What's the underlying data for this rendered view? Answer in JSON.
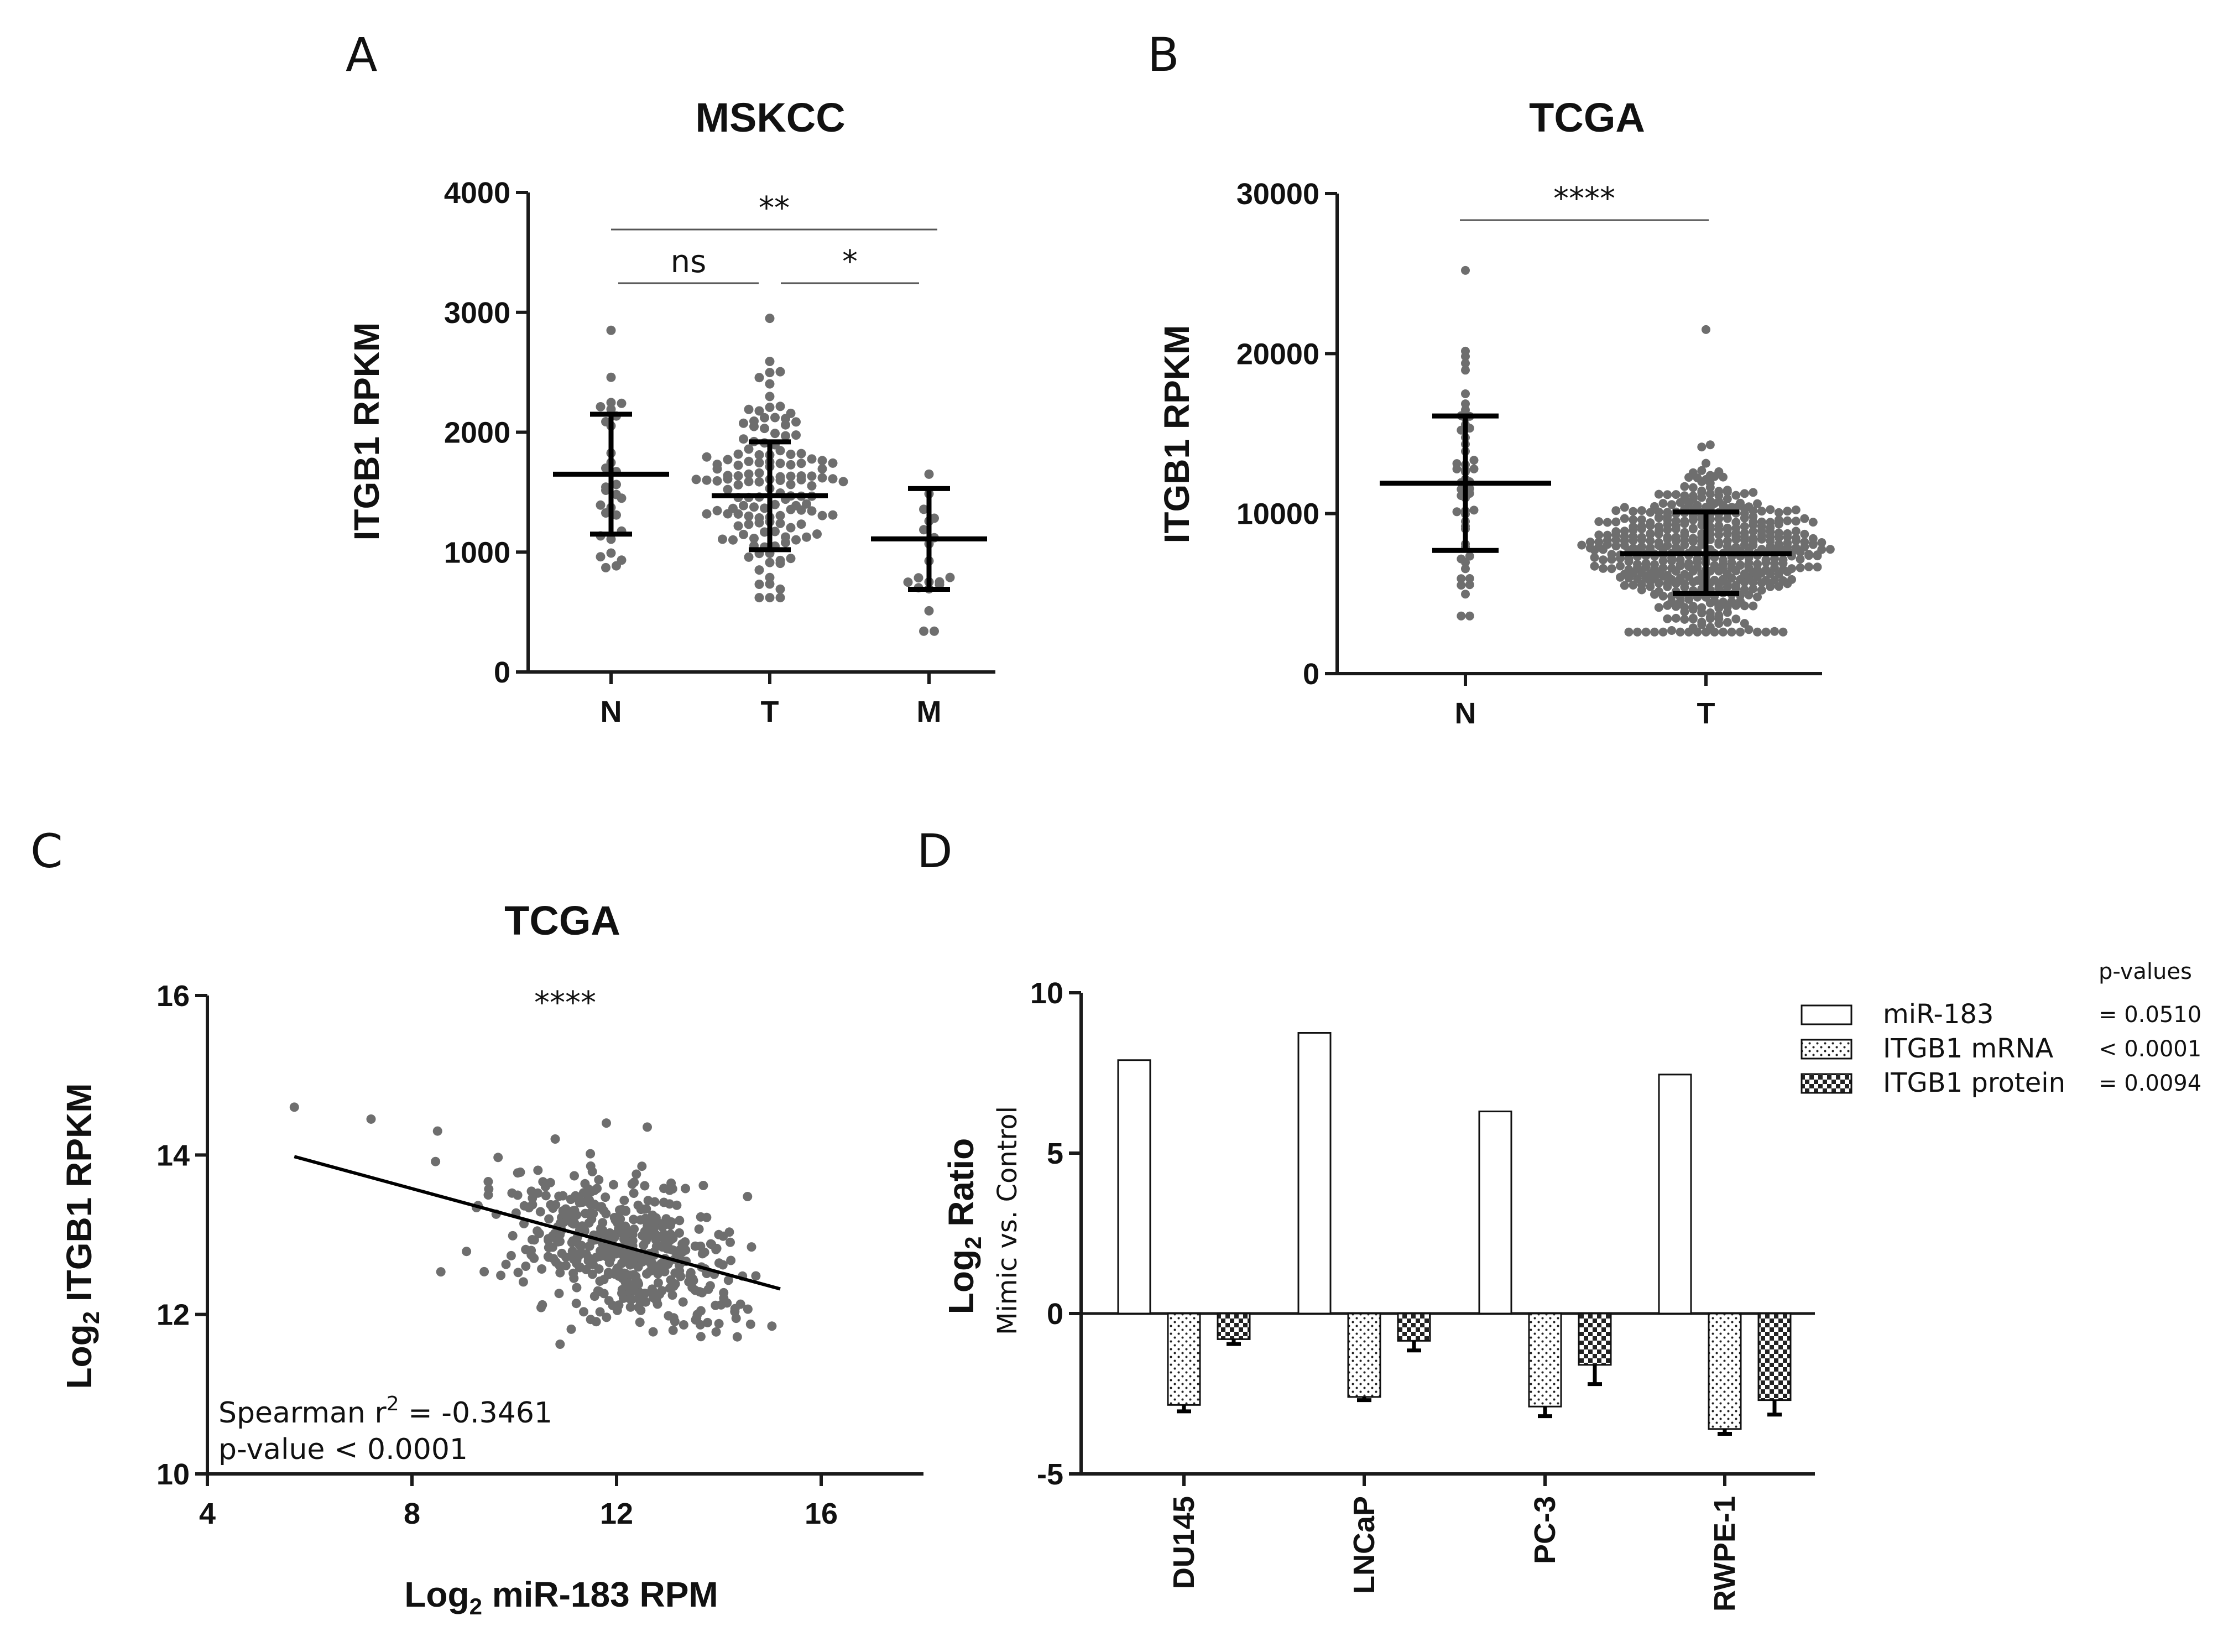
{
  "chart_data": [
    {
      "panel": "A",
      "type": "scatter",
      "title": "MSKCC",
      "ylabel": "ITGB1 RPKM",
      "xlabel": "",
      "ylim": [
        0,
        4000
      ],
      "yticks": [
        0,
        1000,
        2000,
        3000,
        4000
      ],
      "categories": [
        "N",
        "T",
        "M"
      ],
      "groups": [
        {
          "name": "N",
          "n": 30,
          "mean": 1650,
          "sd_low": 1150,
          "sd_high": 2150,
          "min": 870,
          "max": 2850
        },
        {
          "name": "T",
          "n": 140,
          "mean": 1470,
          "sd_low": 1020,
          "sd_high": 1920,
          "min": 620,
          "max": 2950
        },
        {
          "name": "M",
          "n": 20,
          "mean": 1110,
          "sd_low": 690,
          "sd_high": 1530,
          "min": 340,
          "max": 1650
        }
      ],
      "comparisons": [
        {
          "from": "N",
          "to": "T",
          "label": "ns"
        },
        {
          "from": "T",
          "to": "M",
          "label": "*"
        },
        {
          "from": "N",
          "to": "M",
          "label": "**"
        }
      ]
    },
    {
      "panel": "B",
      "type": "scatter",
      "title": "TCGA",
      "ylabel": "ITGB1 RPKM",
      "xlabel": "",
      "ylim": [
        0,
        30000
      ],
      "yticks": [
        0,
        10000,
        20000,
        30000
      ],
      "categories": [
        "N",
        "T"
      ],
      "groups": [
        {
          "name": "N",
          "n": 52,
          "mean": 11900,
          "sd_low": 7700,
          "sd_high": 16100,
          "min": 3600,
          "max": 25200
        },
        {
          "name": "T",
          "n": 490,
          "mean": 7500,
          "sd_low": 5000,
          "sd_high": 10100,
          "min": 2600,
          "max": 21500
        }
      ],
      "comparisons": [
        {
          "from": "N",
          "to": "T",
          "label": "****"
        }
      ]
    },
    {
      "panel": "C",
      "type": "scatter",
      "title": "TCGA",
      "xlabel": "Log2 miR-183 RPM",
      "ylabel": "Log2 ITGB1 RPKM",
      "xlim": [
        4,
        18
      ],
      "ylim": [
        10,
        16
      ],
      "xticks": [
        4,
        8,
        12,
        16
      ],
      "yticks": [
        10,
        12,
        14,
        16
      ],
      "fit_line": {
        "x": [
          5.7,
          15.2
        ],
        "y": [
          13.98,
          12.32
        ]
      },
      "n_points": 490,
      "significance": "****",
      "annotation": {
        "line1_prefix": "Spearman r",
        "line1_sup": "2",
        "line1_suffix": " = -0.3461",
        "line2": "p-value < 0.0001"
      }
    },
    {
      "panel": "D",
      "type": "bar",
      "categories": [
        "DU145",
        "LNCaP",
        "PC-3",
        "RWPE-1"
      ],
      "ylabel_main": "Log2 Ratio",
      "ylabel_sub": "Mimic vs. Control",
      "ylim": [
        -5,
        10
      ],
      "yticks": [
        -5,
        0,
        5,
        10
      ],
      "series": [
        {
          "name": "miR-183",
          "pvalue": "= 0.0510",
          "pattern": "white",
          "values": [
            7.9,
            8.75,
            6.3,
            7.45
          ],
          "errors": [
            0,
            0,
            0,
            0
          ]
        },
        {
          "name": "ITGB1 mRNA",
          "pvalue": "< 0.0001",
          "pattern": "dots",
          "values": [
            -2.85,
            -2.6,
            -2.9,
            -3.6
          ],
          "errors": [
            0.2,
            0.1,
            0.3,
            0.15
          ]
        },
        {
          "name": "ITGB1 protein",
          "pvalue": "= 0.0094",
          "pattern": "checker",
          "values": [
            -0.8,
            -0.85,
            -1.6,
            -2.7
          ],
          "errors": [
            0.15,
            0.3,
            0.6,
            0.45
          ]
        }
      ],
      "legend_header": "p-values",
      "legend_position": "top-right"
    }
  ],
  "labels": {
    "panels": [
      "A",
      "B",
      "C",
      "D"
    ],
    "a_title": "MSKCC",
    "a_ylabel": "ITGB1 RPKM",
    "b_title": "TCGA",
    "b_ylabel": "ITGB1 RPKM",
    "c_title": "TCGA",
    "c_xlabel_pre": "Log",
    "c_xlabel_sub": "2",
    "c_xlabel_post": " miR-183 RPM",
    "c_ylabel_pre": "Log",
    "c_ylabel_sub": "2",
    "c_ylabel_post": " ITGB1 RPKM",
    "d_ylabel_pre": "Log",
    "d_ylabel_sub": "2",
    "d_ylabel_post": " Ratio",
    "d_ylabel_sub2": "Mimic vs. Control"
  },
  "colors": {
    "dots": "#6e6e6e",
    "axis": "#1a1a1a",
    "ink": "#000000"
  }
}
